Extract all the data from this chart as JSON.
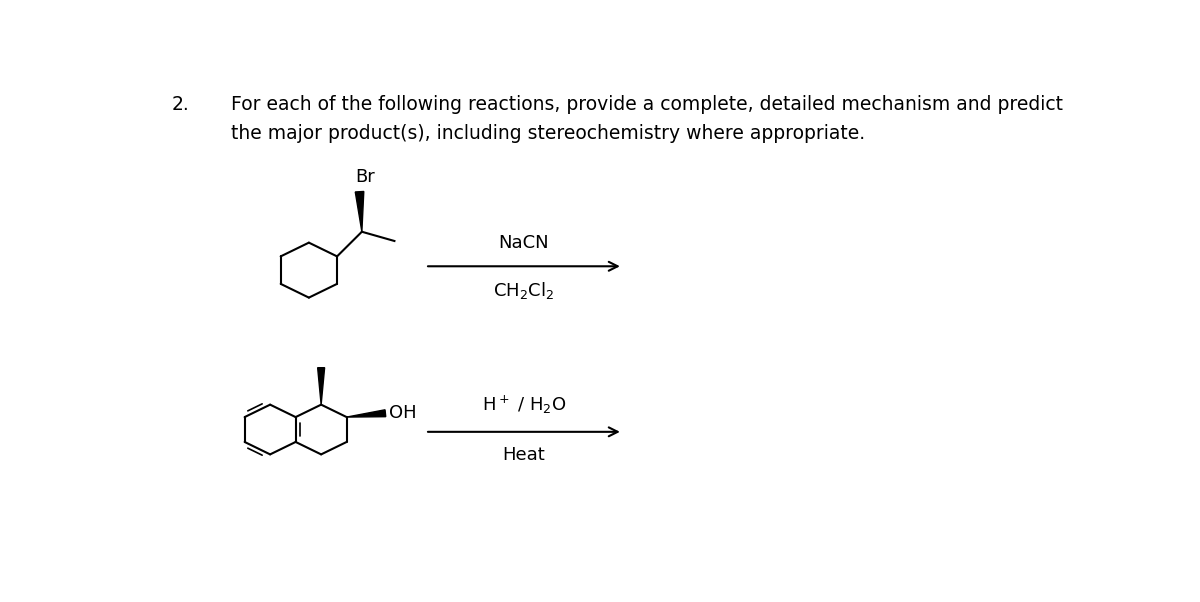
{
  "background_color": "#ffffff",
  "text_color": "#000000",
  "title_number": "2.",
  "title_line1": "For each of the following reactions, provide a complete, detailed mechanism and predict",
  "title_line2": "the major product(s), including stereochemistry where appropriate.",
  "r1_nacn": "NaCN",
  "r1_solvent": "CH$_2$Cl$_2$",
  "r2_acid": "H$^+$ / H",
  "r2_water": "O",
  "r2_sub2": "2",
  "r2_heat": "Heat",
  "font_title": 13.5,
  "font_reagent": 13,
  "font_struct": 12
}
